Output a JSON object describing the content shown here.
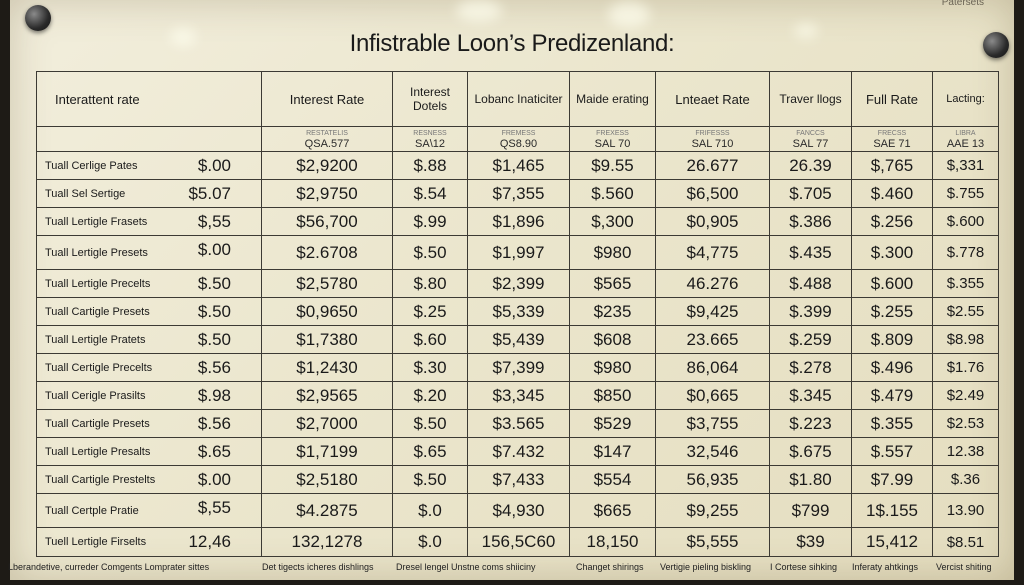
{
  "title": "Infistrable Loon’s Predizenland:",
  "corner_label": "Patersets",
  "columns": [
    {
      "header": "Interattent rate",
      "sub_small": "",
      "sub_code": ""
    },
    {
      "header": "Interest Rate",
      "sub_small": "RESTATELIS",
      "sub_code": "QSA.577"
    },
    {
      "header": "Interest Dotels",
      "sub_small": "RESNESS",
      "sub_code": "SA\\12"
    },
    {
      "header": "Lobanc Inaticiter",
      "sub_small": "FREMESS",
      "sub_code": "QS8.90"
    },
    {
      "header": "Maide erating",
      "sub_small": "FREXESS",
      "sub_code": "SAL 70"
    },
    {
      "header": "Lnteaet Rate",
      "sub_small": "FRIFESSS",
      "sub_code": "SAL 710"
    },
    {
      "header": "Traver llogs",
      "sub_small": "FANCCS",
      "sub_code": "SAL 77"
    },
    {
      "header": "Full Rate",
      "sub_small": "FRECSS",
      "sub_code": "SAE 71"
    },
    {
      "header": "Lacting:",
      "sub_small": "LIBRA",
      "sub_code": "AAE 13"
    }
  ],
  "rows": [
    {
      "label": "Tuall Cerlige Pates",
      "values": [
        "$.00",
        "$2,9200",
        "$.88",
        "$1,465",
        "$9.55",
        "26.677",
        "26.39",
        "$,765",
        "$,331"
      ]
    },
    {
      "label": "Tuall Sel Sertige",
      "values": [
        "$5.07",
        "$2,9750",
        "$.54",
        "$7,355",
        "$.560",
        "$6,500",
        "$.705",
        "$.460",
        "$.755"
      ]
    },
    {
      "label": "Tuall Lertigle Frasets",
      "values": [
        "$,55",
        "$56,700",
        "$.99",
        "$1,896",
        "$,300",
        "$0,905",
        "$.386",
        "$.256",
        "$.600"
      ]
    },
    {
      "label": "Tuall Lertigle Presets",
      "values": [
        "$.00",
        "$2.6708",
        "$.50",
        "$1,997",
        "$980",
        "$4,775",
        "$.435",
        "$.300",
        "$.778"
      ]
    },
    {
      "label": "Tuall Lertigle Precelts",
      "values": [
        "$.50",
        "$2,5780",
        "$.80",
        "$2,399",
        "$565",
        "46.276",
        "$.488",
        "$.600",
        "$.355"
      ]
    },
    {
      "label": "Tuall Cartigle Presets",
      "values": [
        "$.50",
        "$0,9650",
        "$.25",
        "$5,339",
        "$235",
        "$9,425",
        "$.399",
        "$.255",
        "$2.55"
      ]
    },
    {
      "label": "Tuall Lertigle Pratets",
      "values": [
        "$.50",
        "$1,7380",
        "$.60",
        "$5,439",
        "$608",
        "23.665",
        "$.259",
        "$.809",
        "$8.98"
      ]
    },
    {
      "label": "Tuall Certigle Precelts",
      "values": [
        "$.56",
        "$1,2430",
        "$.30",
        "$7,399",
        "$980",
        "86,064",
        "$.278",
        "$.496",
        "$1.76"
      ]
    },
    {
      "label": "Tuall Cerigle Prasilts",
      "values": [
        "$.98",
        "$2,9565",
        "$.20",
        "$3,345",
        "$850",
        "$0,665",
        "$.345",
        "$.479",
        "$2.49"
      ]
    },
    {
      "label": "Tuall Cartigle Presets",
      "values": [
        "$.56",
        "$2,7000",
        "$.50",
        "$3.565",
        "$529",
        "$3,755",
        "$.223",
        "$.355",
        "$2.53"
      ]
    },
    {
      "label": "Tuall Lertigle Presalts",
      "values": [
        "$.65",
        "$1,7199",
        "$.65",
        "$7.432",
        "$147",
        "32,546",
        "$.675",
        "$.557",
        "12.38"
      ]
    },
    {
      "label": "Tuall Cartigle Prestelts",
      "values": [
        "$.00",
        "$2,5180",
        "$.50",
        "$7,433",
        "$554",
        "56,935",
        "$1.80",
        "$7.99",
        "$.36"
      ]
    },
    {
      "label": "Tuall Certple Pratie",
      "values": [
        "$,55",
        "$4.2875",
        "$.0",
        "$4,930",
        "$665",
        "$9,255",
        "$799",
        "1$.155",
        "13.90"
      ]
    },
    {
      "label": "Tuell Lertigle Firselts",
      "values": [
        "12,46",
        "132,1278",
        "$.0",
        "156,5C60",
        "18,150",
        "$5,555",
        "$39",
        "15,412",
        "$8.51"
      ]
    }
  ],
  "footer": [
    "Lberandetive, curreder Comgents Lomprater sittes",
    "Det tigects icheres dishlings",
    "Dresel lengel Unstne coms shiiciny",
    "Changet shirings",
    "Vertigie pieling biskling",
    "I Cortese sihking",
    "Inferaty ahtkings",
    "Vercist shiting"
  ]
}
